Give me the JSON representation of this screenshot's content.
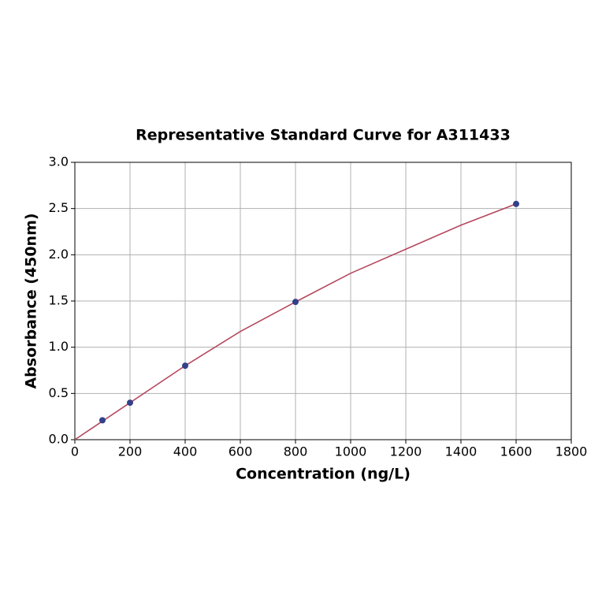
{
  "chart_data": {
    "type": "scatter",
    "title": "Representative Standard Curve for A311433",
    "x_label": "Concentration (ng/L)",
    "y_label": "Absorbance (450nm)",
    "series": [
      {
        "style": "line",
        "color": "#b5485f",
        "x": [
          0,
          200,
          400,
          600,
          800,
          1000,
          1200,
          1400,
          1600
        ],
        "values": [
          0,
          0.4,
          0.8,
          1.17,
          1.49,
          1.8,
          2.06,
          2.32,
          2.55
        ]
      },
      {
        "style": "markers",
        "color": "#33408a",
        "x": [
          100,
          200,
          400,
          800,
          1600
        ],
        "values": [
          0.21,
          0.4,
          0.8,
          1.49,
          2.55
        ]
      }
    ],
    "xlim": [
      0,
      1800
    ],
    "xticks": [
      0,
      200,
      400,
      600,
      800,
      1000,
      1200,
      1400,
      1600,
      1800
    ],
    "ylim": [
      0,
      3
    ],
    "yticks": [
      {
        "value": 0,
        "label": "0.0"
      },
      {
        "value": 0.5,
        "label": "0.5"
      },
      {
        "value": 1,
        "label": "1.0"
      },
      {
        "value": 1.5,
        "label": "1.5"
      },
      {
        "value": 2,
        "label": "2.0"
      },
      {
        "value": 2.5,
        "label": "2.5"
      },
      {
        "value": 3,
        "label": "3.0"
      }
    ],
    "grid": true
  }
}
